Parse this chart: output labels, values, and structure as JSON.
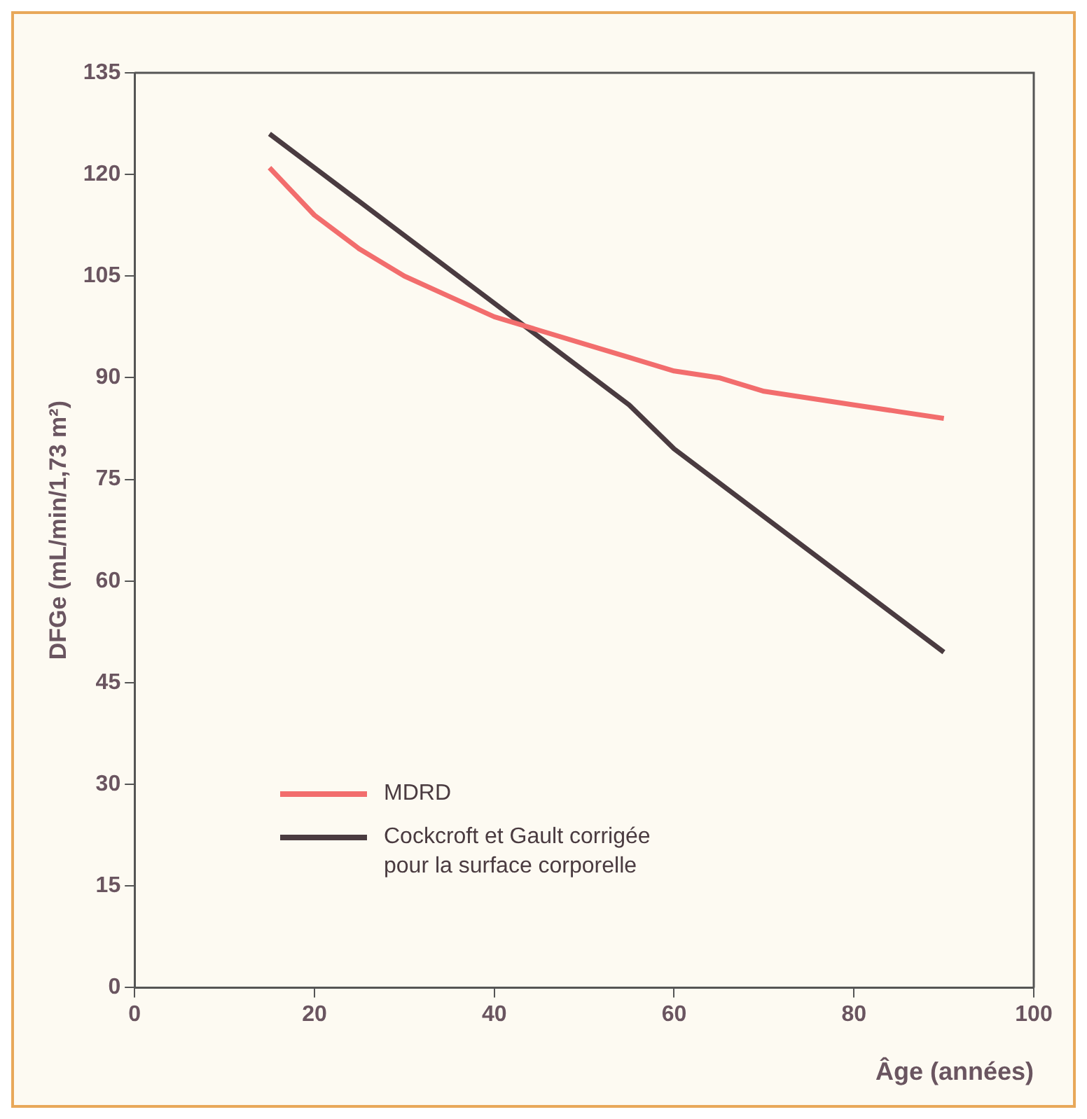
{
  "chart_data": {
    "type": "line",
    "xlabel": "Âge (années)",
    "ylabel": "DFGe (mL/min/1,73 m²)",
    "xlim": [
      0,
      100
    ],
    "xticks": [
      0,
      20,
      40,
      60,
      80,
      100
    ],
    "ylim": [
      0,
      135
    ],
    "yticks": [
      0,
      15,
      30,
      45,
      60,
      75,
      90,
      105,
      120,
      135
    ],
    "grid": false,
    "legend": "bottom left",
    "marker": "none",
    "line_style": "solid",
    "series": [
      {
        "name": "MDRD",
        "color": "#f26d6d",
        "x": [
          15,
          20,
          25,
          30,
          35,
          40,
          45,
          50,
          55,
          60,
          65,
          70,
          75,
          80,
          85,
          90
        ],
        "values": [
          121,
          114,
          109,
          105,
          102,
          99,
          97,
          95,
          93,
          91,
          90,
          88,
          87,
          86,
          85,
          84
        ]
      },
      {
        "name": "Cockcroft et Gault corrigée pour la surface corporelle",
        "color": "#4a3b40",
        "x": [
          15,
          20,
          30,
          40,
          50,
          55,
          60,
          90
        ],
        "values": [
          126,
          121,
          111,
          101,
          91,
          86,
          79.5,
          49.5
        ]
      }
    ]
  }
}
